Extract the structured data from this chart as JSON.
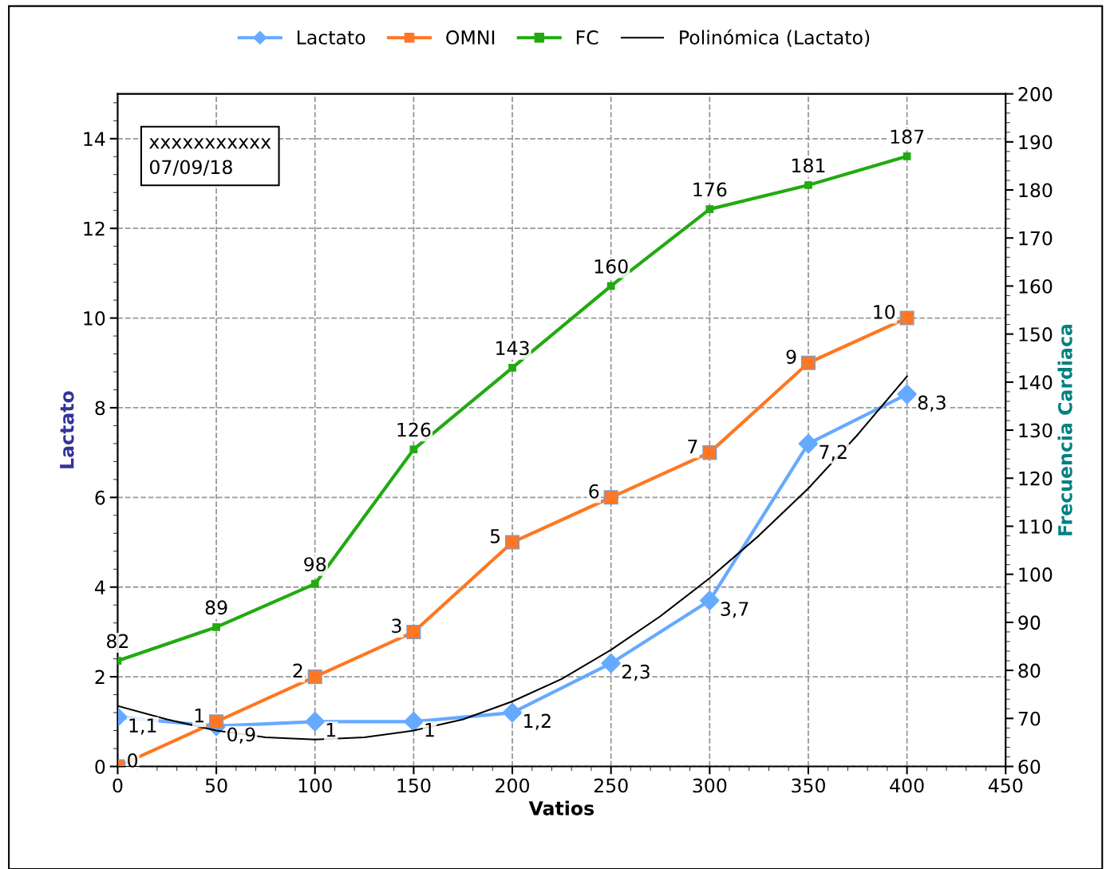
{
  "chart_data": {
    "type": "line",
    "xlabel": "Vatios",
    "ylabel": "Lactato",
    "y2label": "Frecuencia Cardiaca",
    "x": [
      0,
      50,
      100,
      150,
      200,
      250,
      300,
      350,
      400
    ],
    "xlim": [
      0,
      450
    ],
    "xticks": [
      0,
      50,
      100,
      150,
      200,
      250,
      300,
      350,
      400,
      450
    ],
    "ylim": [
      0,
      15
    ],
    "yticks": [
      0,
      2,
      4,
      6,
      8,
      10,
      12,
      14
    ],
    "y2lim": [
      60,
      200
    ],
    "y2ticks": [
      60,
      70,
      80,
      90,
      100,
      110,
      120,
      130,
      140,
      150,
      160,
      170,
      180,
      190,
      200
    ],
    "grid": true,
    "legend": "top",
    "annotations": [
      "xxxxxxxxxxx\n07/09/18"
    ],
    "series": [
      {
        "name": "Lactato",
        "color": "#66aaff",
        "marker": "diamond",
        "value_labels": [
          "1,1",
          "0,9",
          "1",
          "1",
          "1,2",
          "2,3",
          "3,7",
          "7,2",
          "8,3"
        ],
        "values": [
          1.1,
          0.9,
          1,
          1,
          1.2,
          2.3,
          3.7,
          7.2,
          8.3
        ]
      },
      {
        "name": "OMNI",
        "color": "#ff7722",
        "marker": "square",
        "data_labels": true,
        "values": [
          0,
          1,
          2,
          3,
          5,
          6,
          7,
          9,
          10
        ]
      },
      {
        "name": "FC",
        "color": "#22aa11",
        "marker": "square",
        "axis": "y2",
        "data_labels": true,
        "values": [
          82,
          89,
          98,
          126,
          143,
          160,
          176,
          181,
          187
        ]
      },
      {
        "name": "Polinómica (Lactato)",
        "color": "#000000",
        "marker": "none",
        "x": [
          0,
          25,
          50,
          75,
          100,
          125,
          150,
          175,
          200,
          225,
          250,
          275,
          300,
          325,
          350,
          375,
          400
        ],
        "values": [
          1.35,
          1.05,
          0.8,
          0.65,
          0.6,
          0.65,
          0.8,
          1.05,
          1.45,
          1.95,
          2.6,
          3.35,
          4.2,
          5.15,
          6.2,
          7.4,
          8.7
        ]
      }
    ]
  }
}
